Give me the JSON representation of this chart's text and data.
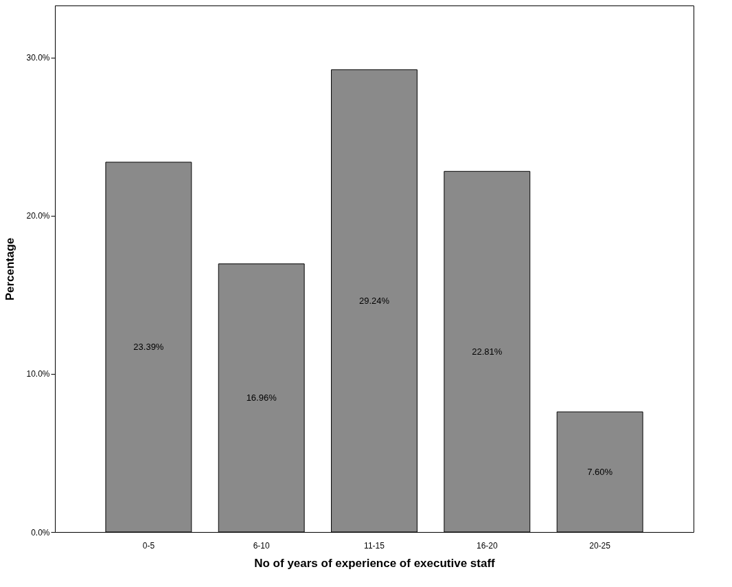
{
  "chart_data": {
    "type": "bar",
    "xlabel": "No of years of experience of executive staff",
    "ylabel": "Percentage",
    "categories": [
      "0-5",
      "6-10",
      "11-15",
      "16-20",
      "20-25"
    ],
    "values": [
      23.39,
      16.96,
      29.24,
      22.81,
      7.6
    ],
    "value_labels": [
      "23.39%",
      "16.96%",
      "29.24%",
      "22.81%",
      "7.60%"
    ],
    "color": "#8a8a8a",
    "ylim": [
      0,
      33.3
    ],
    "yticks": [
      {
        "value": 0,
        "label": "0.0%"
      },
      {
        "value": 10,
        "label": "10.0%"
      },
      {
        "value": 20,
        "label": "20.0%"
      },
      {
        "value": 30,
        "label": "30.0%"
      }
    ],
    "grid": false
  }
}
